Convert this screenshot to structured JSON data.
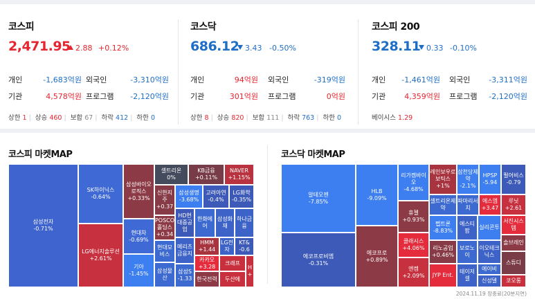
{
  "colors": {
    "up": "#e52530",
    "down": "#1e6ec8"
  },
  "kospi": {
    "title": "코스피",
    "value": "2,471.95",
    "change": "2.88",
    "rate": "+0.12%",
    "direction": "up",
    "rows": [
      {
        "l1": "개인",
        "v1": "-1,683억원",
        "c1": "b",
        "l2": "외국인",
        "v2": "-3,310억원",
        "c2": "b"
      },
      {
        "l1": "기관",
        "v1": "4,578억원",
        "c1": "r",
        "l2": "프로그램",
        "v2": "-2,120억원",
        "c2": "b"
      }
    ],
    "stats": [
      {
        "label": "상한",
        "value": "1",
        "color": "r"
      },
      {
        "label": "상승",
        "value": "460",
        "color": "r"
      },
      {
        "label": "보합",
        "value": "67",
        "color": "g"
      },
      {
        "label": "하락",
        "value": "412",
        "color": "b"
      },
      {
        "label": "하한",
        "value": "0",
        "color": "b"
      }
    ]
  },
  "kosdaq": {
    "title": "코스닥",
    "value": "686.12",
    "change": "3.43",
    "rate": "-0.50%",
    "direction": "down",
    "rows": [
      {
        "l1": "개인",
        "v1": "94억원",
        "c1": "r",
        "l2": "외국인",
        "v2": "-319억원",
        "c2": "b"
      },
      {
        "l1": "기관",
        "v1": "301억원",
        "c1": "r",
        "l2": "프로그램",
        "v2": "0억원",
        "c2": "r"
      }
    ],
    "stats": [
      {
        "label": "상한",
        "value": "8",
        "color": "r"
      },
      {
        "label": "상승",
        "value": "820",
        "color": "r"
      },
      {
        "label": "보합",
        "value": "111",
        "color": "g"
      },
      {
        "label": "하락",
        "value": "763",
        "color": "b"
      },
      {
        "label": "하한",
        "value": "0",
        "color": "b"
      }
    ]
  },
  "kospi200": {
    "title": "코스피 200",
    "value": "328.11",
    "change": "0.33",
    "rate": "-0.10%",
    "direction": "down",
    "rows": [
      {
        "l1": "개인",
        "v1": "-1,461억원",
        "c1": "b",
        "l2": "외국인",
        "v2": "-3,311억원",
        "c2": "b"
      },
      {
        "l1": "기관",
        "v1": "4,359억원",
        "c1": "r",
        "l2": "프로그램",
        "v2": "-2,120억원",
        "c2": "b"
      }
    ],
    "basis_label": "베이시스",
    "basis_value": "1.29"
  },
  "kospi_map": {
    "title": "코스피 마켓MAP",
    "cells": [
      {
        "n": "삼성전자",
        "c": "-0.71%",
        "color": "#3f63cf"
      },
      {
        "n": "SK하이닉스",
        "c": "-0.64%",
        "color": "#3f6ad6"
      },
      {
        "n": "LG에너지솔루션",
        "c": "+2.61%",
        "color": "#c7303e"
      },
      {
        "n": "삼성바이오로직스",
        "c": "+0.33%",
        "color": "#8c3b46"
      },
      {
        "n": "현대차",
        "c": "-0.69%",
        "color": "#3f6ad6"
      },
      {
        "n": "기아",
        "c": "-1.45%",
        "color": "#3d7ef0"
      },
      {
        "n": "셀트리온",
        "c": "0%",
        "color": "#444b5c"
      },
      {
        "n": "KB금융",
        "c": "+0.11%",
        "color": "#773c47"
      },
      {
        "n": "NAVER",
        "c": "+1.15%",
        "color": "#b8333f"
      },
      {
        "n": "신한지주",
        "c": "+0.37",
        "color": "#873b46"
      },
      {
        "n": "삼성생명",
        "c": "-3.68%",
        "color": "#3d7ef0"
      },
      {
        "n": "고려아연",
        "c": "-0.4%",
        "color": "#3d5ab8"
      },
      {
        "n": "LG화학",
        "c": "-0.35%",
        "color": "#3d5ab8"
      },
      {
        "n": "POSCO홀딩스",
        "c": "+0.34",
        "color": "#8c3b46"
      },
      {
        "n": "HD현대중공업",
        "c": "",
        "color": "#3d5ab8"
      },
      {
        "n": "한화에어",
        "c": "",
        "color": "#3d6ad0"
      },
      {
        "n": "삼성화재",
        "c": "",
        "color": "#3d62c8"
      },
      {
        "n": "하나금융",
        "c": "",
        "color": "#3d62c8"
      },
      {
        "n": "HMM",
        "c": "+1.44",
        "color": "#a83440"
      },
      {
        "n": "LG전자",
        "c": "",
        "color": "#3d62c8"
      },
      {
        "n": "KT&",
        "c": "-0.6",
        "color": "#3d5ab8"
      },
      {
        "n": "현대모비스",
        "c": "",
        "color": "#3d6ad0"
      },
      {
        "n": "메리츠금융지",
        "c": "",
        "color": "#3d62c8"
      },
      {
        "n": "카카오",
        "c": "+3.28",
        "color": "#e52c3c"
      },
      {
        "n": "크래프",
        "c": "",
        "color": "#c8303e"
      },
      {
        "n": "H",
        "c": "+",
        "color": "#c8303e"
      },
      {
        "n": "삼성물산",
        "c": "",
        "color": "#3d6ad0"
      },
      {
        "n": "삼성S",
        "c": "-1.33",
        "color": "#3d6ad0"
      },
      {
        "n": "한국전력",
        "c": "",
        "color": "#8c3b46"
      },
      {
        "n": "두산에",
        "c": "",
        "color": "#c8303e"
      }
    ]
  },
  "kosdaq_map": {
    "title": "코스닥 마켓MAP",
    "cells": [
      {
        "n": "알테오젠",
        "c": "-7.85%",
        "color": "#3d7ef0"
      },
      {
        "n": "에코프로비엠",
        "c": "-0.31%",
        "color": "#3d5ab8"
      },
      {
        "n": "HLB",
        "c": "-9.09%",
        "color": "#3d7ef0"
      },
      {
        "n": "에코프로",
        "c": "+0.89%",
        "color": "#8c3b46"
      },
      {
        "n": "리가켐바이오",
        "c": "-4.68%",
        "color": "#3d7ef0"
      },
      {
        "n": "휴젤",
        "c": "+0.93%",
        "color": "#8c3b46"
      },
      {
        "n": "클래시스",
        "c": "+4.06%",
        "color": "#e52c3c"
      },
      {
        "n": "엔켐",
        "c": "+2.09%",
        "color": "#c7303e"
      },
      {
        "n": "레인보우로보틱스",
        "c": "+1%",
        "color": "#a83440"
      },
      {
        "n": "셀트리온제약",
        "c": "",
        "color": "#3d6ad0"
      },
      {
        "n": "펩트론",
        "c": "-8.83%",
        "color": "#3d7ef0"
      },
      {
        "n": "리노공업",
        "c": "+0.46%",
        "color": "#873b46"
      },
      {
        "n": "JYP Ent.",
        "c": "",
        "color": "#e52c3c"
      },
      {
        "n": "삼천당제약",
        "c": "-2.1%",
        "color": "#3d7ef0"
      },
      {
        "n": "파마리서치",
        "c": "",
        "color": "#3d6ad0"
      },
      {
        "n": "에스티팜",
        "c": "",
        "color": "#3d62c8"
      },
      {
        "n": "보로노이",
        "c": "",
        "color": "#3d6ad0"
      },
      {
        "n": "테이저셀",
        "c": "",
        "color": "#3d62c8"
      },
      {
        "n": "HPSP",
        "c": "-5.94",
        "color": "#3d7ef0"
      },
      {
        "n": "에스엠",
        "c": "+3.47",
        "color": "#e52c3c"
      },
      {
        "n": "실리콘투",
        "c": "",
        "color": "#3d7ef0"
      },
      {
        "n": "이오테크닉스",
        "c": "",
        "color": "#3d62c8"
      },
      {
        "n": "에이비",
        "c": "",
        "color": "#3d6ad0"
      },
      {
        "n": "신성델",
        "c": "",
        "color": "#3d62c8"
      },
      {
        "n": "펄어비스",
        "c": "-0.79",
        "color": "#3d5ab8"
      },
      {
        "n": "루닛",
        "c": "+2.61",
        "color": "#c7303e"
      },
      {
        "n": "서진시스템",
        "c": "",
        "color": "#e52c3c"
      },
      {
        "n": "솔브레인",
        "c": "",
        "color": "#8c3b46"
      },
      {
        "n": "스튜디",
        "c": "",
        "color": "#7a3c47"
      },
      {
        "n": "코오롱",
        "c": "",
        "color": "#c8303e"
      }
    ]
  },
  "footer": "2024.11.19 장종료(20분지연)"
}
